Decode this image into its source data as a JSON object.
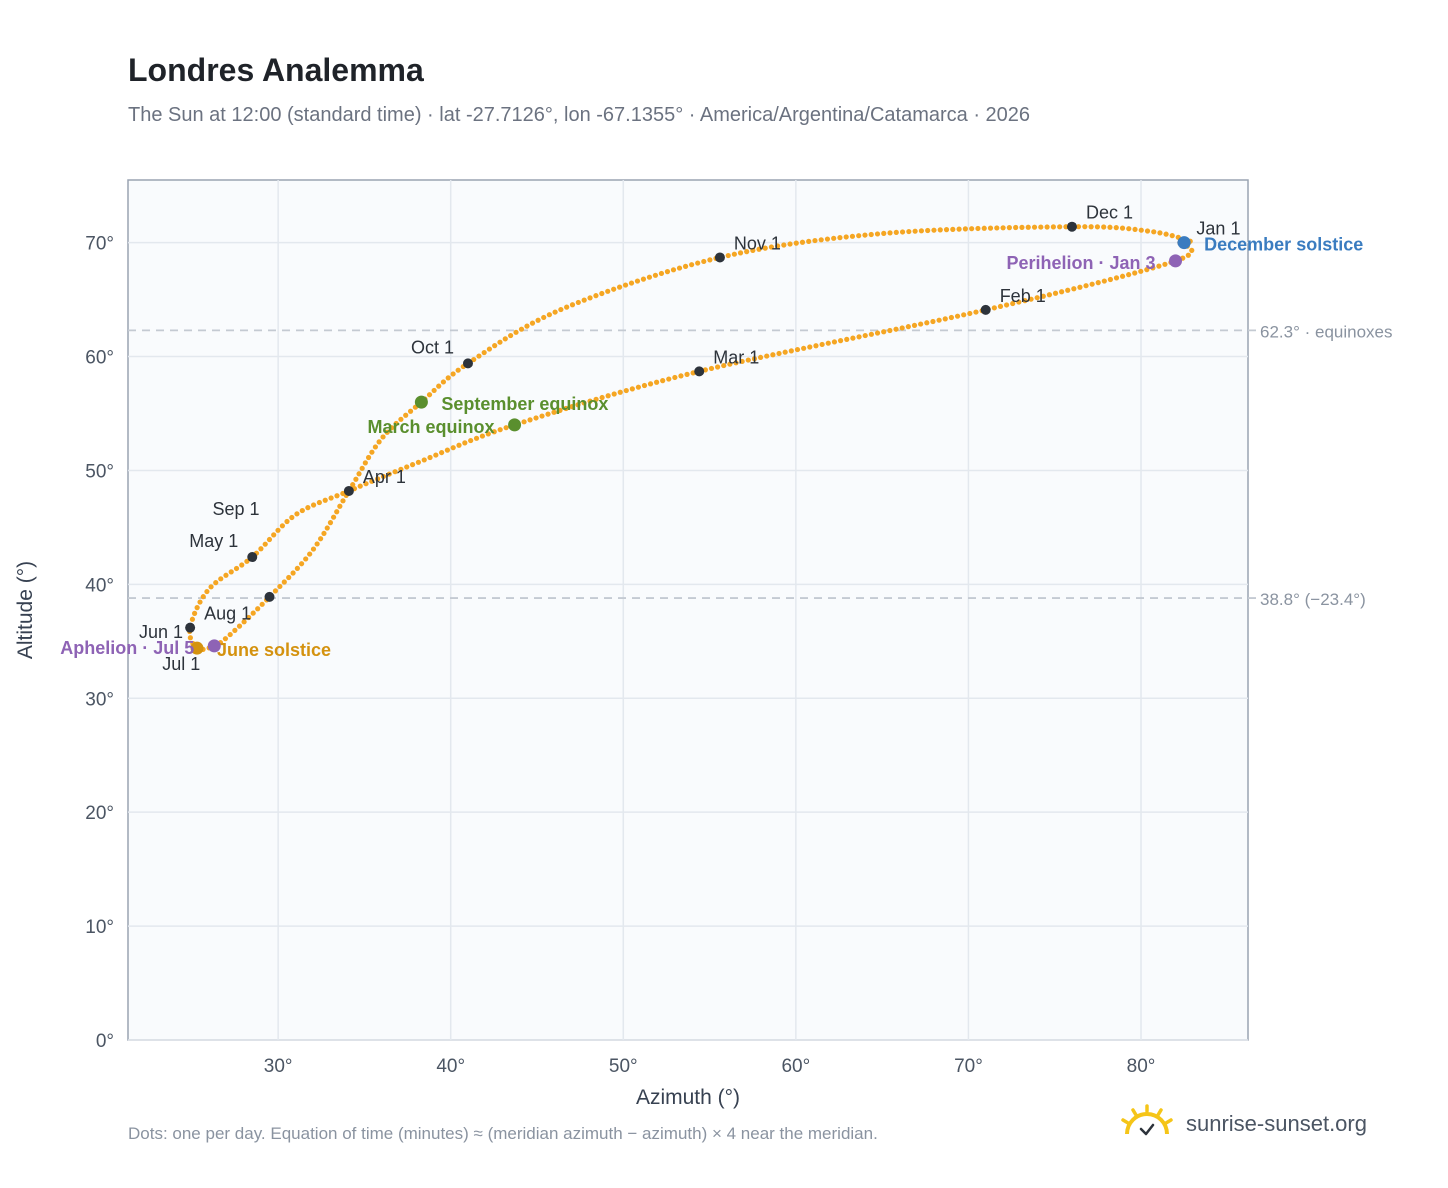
{
  "header": {
    "title": "Londres Analemma",
    "subtitle": "The Sun at 12:00 (standard time) · lat -27.7126°, lon -67.1355° · America/Argentina/Catamarca · 2026"
  },
  "footer": {
    "note": "Dots: one per day. Equation of time (minutes) ≈ (meridian azimuth − azimuth) × 4 near the meridian.",
    "brand": "sunrise-sunset.org"
  },
  "colors": {
    "curve": "#f5a623",
    "month_marker": "#2d333b",
    "equinox": "#5a8f2e",
    "june_solstice": "#d4920f",
    "december_solstice": "#3a7cc0",
    "perihelion_aphelion": "#8e63b5",
    "reference_line": "#c4cad2",
    "plot_bg": "#f9fbfd",
    "grid": "#e3e8ee"
  },
  "chart_data": {
    "type": "scatter",
    "xlabel": "Azimuth (°)",
    "ylabel": "Altitude (°)",
    "xlim": [
      21.3,
      86.2
    ],
    "ylim": [
      0,
      75.5
    ],
    "xticks": [
      30,
      40,
      50,
      60,
      70,
      80
    ],
    "xtick_labels": [
      "30°",
      "40°",
      "50°",
      "60°",
      "70°",
      "80°"
    ],
    "yticks": [
      0,
      10,
      20,
      30,
      40,
      50,
      60,
      70
    ],
    "ytick_labels": [
      "0°",
      "10°",
      "20°",
      "30°",
      "40°",
      "50°",
      "60°",
      "70°"
    ],
    "grid": true,
    "path_anchors": [
      {
        "x": 82.4,
        "y": 70.0
      },
      {
        "x": 82.0,
        "y": 68.4
      },
      {
        "x": 71.0,
        "y": 64.1
      },
      {
        "x": 54.4,
        "y": 58.7
      },
      {
        "x": 43.7,
        "y": 54.0
      },
      {
        "x": 38.1,
        "y": 50.7
      },
      {
        "x": 34.1,
        "y": 48.2
      },
      {
        "x": 31.0,
        "y": 46.1
      },
      {
        "x": 28.5,
        "y": 42.4
      },
      {
        "x": 26.0,
        "y": 39.6
      },
      {
        "x": 24.9,
        "y": 36.2
      },
      {
        "x": 25.3,
        "y": 34.4
      },
      {
        "x": 26.3,
        "y": 34.6
      },
      {
        "x": 27.3,
        "y": 35.7
      },
      {
        "x": 29.5,
        "y": 38.9
      },
      {
        "x": 32.0,
        "y": 43.0
      },
      {
        "x": 34.1,
        "y": 48.2
      },
      {
        "x": 36.0,
        "y": 52.8
      },
      {
        "x": 38.3,
        "y": 56.0
      },
      {
        "x": 41.0,
        "y": 59.4
      },
      {
        "x": 46.5,
        "y": 64.2
      },
      {
        "x": 55.6,
        "y": 68.7
      },
      {
        "x": 65.0,
        "y": 70.8
      },
      {
        "x": 76.0,
        "y": 71.4
      },
      {
        "x": 80.5,
        "y": 71.0
      },
      {
        "x": 82.9,
        "y": 70.1
      },
      {
        "x": 82.4,
        "y": 70.0
      }
    ],
    "month_markers": [
      {
        "label": "Jan 1",
        "x": 82.4,
        "y": 70.0,
        "pos": "right"
      },
      {
        "label": "Feb 1",
        "x": 71.0,
        "y": 64.1,
        "pos": "right"
      },
      {
        "label": "Mar 1",
        "x": 54.4,
        "y": 58.7,
        "pos": "right"
      },
      {
        "label": "Apr 1",
        "x": 34.1,
        "y": 48.2,
        "pos": "right"
      },
      {
        "label": "May 1",
        "x": 28.5,
        "y": 42.4,
        "pos": "left"
      },
      {
        "label": "Jun 1",
        "x": 25.3,
        "y": 34.4,
        "pos": "left"
      },
      {
        "label": "Jul 1",
        "x": 26.3,
        "y": 34.6,
        "pos": "below"
      },
      {
        "label": "Aug 1",
        "x": 24.9,
        "y": 36.2,
        "pos": "right"
      },
      {
        "label": "Sep 1",
        "x": 29.5,
        "y": 38.9,
        "pos": "upleft"
      },
      {
        "label": "Oct 1",
        "x": 41.0,
        "y": 59.4,
        "pos": "left"
      },
      {
        "label": "Nov 1",
        "x": 55.6,
        "y": 68.7,
        "pos": "right"
      },
      {
        "label": "Dec 1",
        "x": 76.0,
        "y": 71.4,
        "pos": "right"
      }
    ],
    "events": [
      {
        "label": "December solstice",
        "x": 82.5,
        "y": 70.0,
        "color": "#3a7cc0",
        "pos": "right"
      },
      {
        "label": "Perihelion · Jan 3",
        "x": 82.0,
        "y": 68.4,
        "color": "#8e63b5",
        "pos": "left"
      },
      {
        "label": "September equinox",
        "x": 38.3,
        "y": 56.0,
        "color": "#5a8f2e",
        "pos": "right"
      },
      {
        "label": "March equinox",
        "x": 43.7,
        "y": 54.0,
        "color": "#5a8f2e",
        "pos": "left"
      },
      {
        "label": "June solstice",
        "x": 25.3,
        "y": 34.4,
        "color": "#d4920f",
        "pos": "right"
      },
      {
        "label": "Aphelion · Jul 5",
        "x": 26.3,
        "y": 34.6,
        "color": "#8e63b5",
        "pos": "left"
      }
    ],
    "reference_lines": [
      {
        "y": 62.3,
        "label": "62.3° · equinoxes"
      },
      {
        "y": 38.8,
        "label": "38.8° (−23.4°)"
      }
    ]
  }
}
